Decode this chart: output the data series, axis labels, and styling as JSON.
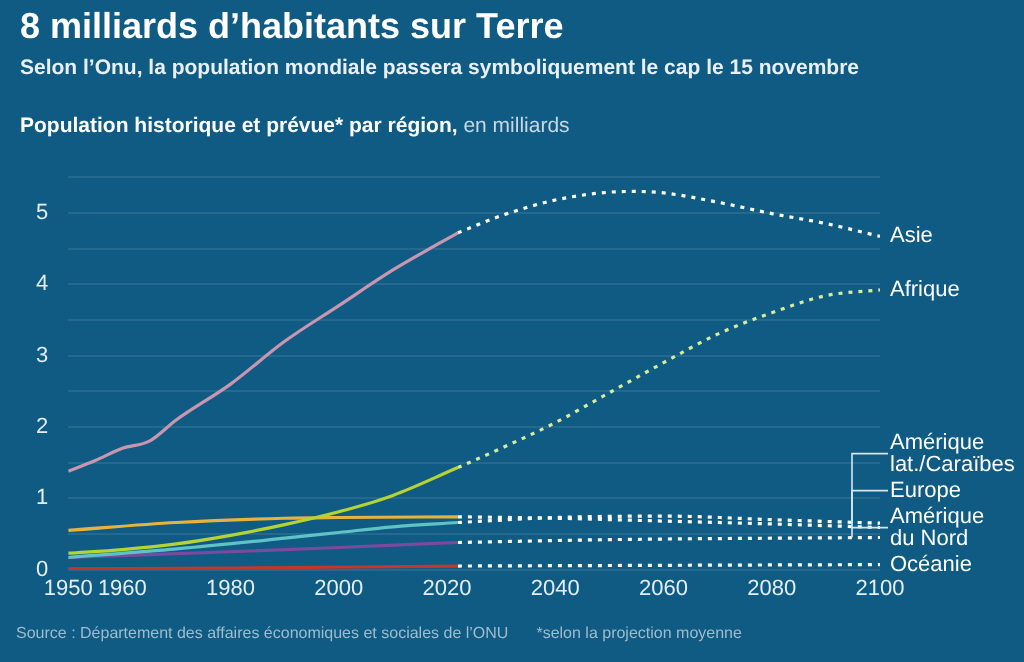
{
  "chart_data": {
    "type": "line",
    "title": "8 milliards d’habitants sur Terre",
    "subtitle": "Selon l’Onu, la population mondiale passera symboliquement le cap le 15 novembre",
    "ylabel": "Population historique et prévue* par région, en milliards",
    "annotations": [
      "Source : Département des affaires économiques et sociales de l’ONU",
      "*selon la projection moyenne"
    ],
    "xlim": [
      1950,
      2100
    ],
    "xticks": [
      1950,
      1960,
      1980,
      2000,
      2020,
      2040,
      2060,
      2080,
      2100
    ],
    "ylim": [
      0,
      5.5
    ],
    "yticks": [
      0,
      {
        "value": 0.5,
        "label": null
      },
      1,
      {
        "value": 1.5,
        "label": null
      },
      2,
      {
        "value": 2.5,
        "label": null
      },
      3,
      {
        "value": 3.5,
        "label": null
      },
      4,
      {
        "value": 4.5,
        "label": null
      },
      5,
      {
        "value": 5.5,
        "label": null
      }
    ],
    "grid": "y",
    "marker": "none",
    "series": [
      {
        "color": "#c996b0",
        "line_style": "solid",
        "x": [
          1950,
          1955,
          1960,
          1965,
          1970,
          1980,
          1990,
          2000,
          2010,
          2018,
          2022
        ],
        "values": [
          1.38,
          1.53,
          1.7,
          1.8,
          2.1,
          2.6,
          3.2,
          3.7,
          4.2,
          4.55,
          4.72
        ]
      },
      {
        "color": "#b5d334",
        "line_style": "solid",
        "x": [
          1950,
          1960,
          1970,
          1980,
          1990,
          2000,
          2010,
          2022
        ],
        "values": [
          0.23,
          0.28,
          0.36,
          0.48,
          0.63,
          0.81,
          1.04,
          1.43
        ]
      },
      {
        "color": "#e8b23f",
        "line_style": "solid",
        "x": [
          1950,
          1970,
          1990,
          2000,
          2022
        ],
        "values": [
          0.55,
          0.66,
          0.72,
          0.73,
          0.74
        ]
      },
      {
        "color": "#5fc3c6",
        "line_style": "solid",
        "x": [
          1950,
          1970,
          1990,
          2000,
          2010,
          2022
        ],
        "values": [
          0.17,
          0.29,
          0.44,
          0.52,
          0.6,
          0.66
        ]
      },
      {
        "color": "#7b4aa0",
        "line_style": "solid",
        "x": [
          1950,
          1980,
          2000,
          2022
        ],
        "values": [
          0.17,
          0.25,
          0.31,
          0.38
        ]
      },
      {
        "color": "#c0392b",
        "line_style": "solid",
        "x": [
          1950,
          1980,
          2022
        ],
        "values": [
          0.01,
          0.02,
          0.05
        ]
      },
      {
        "name": "Asie",
        "color": "#ffffff",
        "line_style": "dotted",
        "x": [
          2022,
          2030,
          2040,
          2050,
          2055,
          2060,
          2070,
          2080,
          2090,
          2100
        ],
        "values": [
          4.72,
          4.96,
          5.18,
          5.29,
          5.3,
          5.28,
          5.15,
          4.99,
          4.85,
          4.67
        ]
      },
      {
        "name": "Afrique",
        "color": "#d6ec9a",
        "line_style": "dotted",
        "x": [
          2022,
          2030,
          2040,
          2050,
          2060,
          2070,
          2080,
          2090,
          2100
        ],
        "values": [
          1.43,
          1.7,
          2.06,
          2.48,
          2.9,
          3.3,
          3.6,
          3.84,
          3.92
        ]
      },
      {
        "name": "Amérique lat./Caraïbes",
        "color": "#ffffff",
        "line_style": "dotted",
        "x": [
          2022,
          2040,
          2060,
          2080,
          2100
        ],
        "values": [
          0.66,
          0.73,
          0.75,
          0.7,
          0.65
        ]
      },
      {
        "name": "Europe",
        "color": "#ffffff",
        "line_style": "dotted",
        "x": [
          2022,
          2040,
          2060,
          2080,
          2100
        ],
        "values": [
          0.74,
          0.72,
          0.68,
          0.64,
          0.59
        ]
      },
      {
        "name": "Amérique du Nord",
        "color": "#ffffff",
        "line_style": "dotted",
        "x": [
          2022,
          2050,
          2100
        ],
        "values": [
          0.38,
          0.42,
          0.45
        ]
      },
      {
        "name": "Océanie",
        "color": "#ffffff",
        "line_style": "dotted",
        "x": [
          2022,
          2060,
          2100
        ],
        "values": [
          0.05,
          0.06,
          0.07
        ]
      }
    ]
  }
}
